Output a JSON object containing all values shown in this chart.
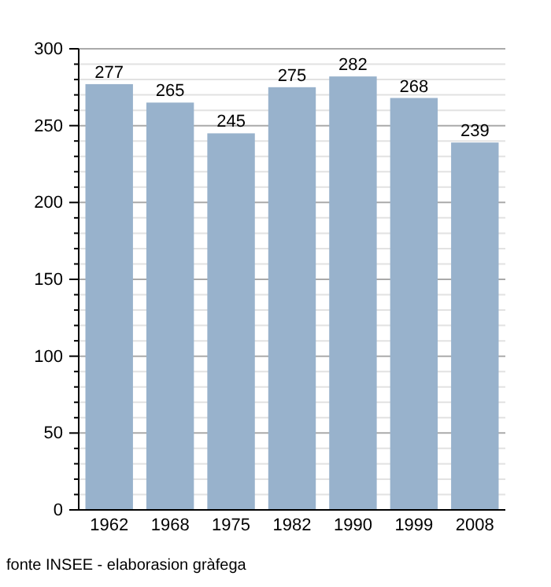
{
  "chart_data": {
    "type": "bar",
    "categories": [
      "1962",
      "1968",
      "1975",
      "1982",
      "1990",
      "1999",
      "2008"
    ],
    "values": [
      277,
      265,
      245,
      275,
      282,
      268,
      239
    ],
    "color": "#98b2cc",
    "data_labels": true,
    "ylim": [
      0,
      300
    ],
    "yticks": [
      0,
      {
        "value": 10,
        "label": null
      },
      {
        "value": 20,
        "label": null
      },
      {
        "value": 30,
        "label": null
      },
      {
        "value": 40,
        "label": null
      },
      50,
      {
        "value": 60,
        "label": null
      },
      {
        "value": 70,
        "label": null
      },
      {
        "value": 80,
        "label": null
      },
      {
        "value": 90,
        "label": null
      },
      100,
      {
        "value": 110,
        "label": null
      },
      {
        "value": 120,
        "label": null
      },
      {
        "value": 130,
        "label": null
      },
      {
        "value": 140,
        "label": null
      },
      150,
      {
        "value": 160,
        "label": null
      },
      {
        "value": 170,
        "label": null
      },
      {
        "value": 180,
        "label": null
      },
      {
        "value": 190,
        "label": null
      },
      200,
      {
        "value": 210,
        "label": null
      },
      {
        "value": 220,
        "label": null
      },
      {
        "value": 230,
        "label": null
      },
      {
        "value": 240,
        "label": null
      },
      250,
      {
        "value": 260,
        "label": null
      },
      {
        "value": 270,
        "label": null
      },
      {
        "value": 280,
        "label": null
      },
      {
        "value": 290,
        "label": null
      },
      300
    ],
    "grid": "y",
    "annotations": [
      "fonte INSEE - elaborasion gràfega"
    ]
  }
}
